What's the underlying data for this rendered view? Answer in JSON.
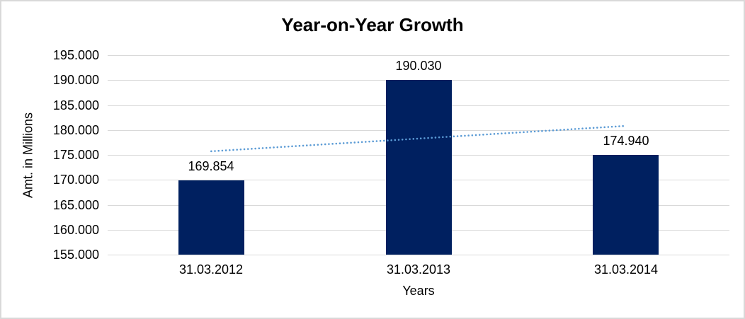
{
  "chart_data": {
    "type": "bar",
    "title": "Year-on-Year Growth",
    "xlabel": "Years",
    "ylabel": "Amt. in Millions",
    "categories": [
      "31.03.2012",
      "31.03.2013",
      "31.03.2014"
    ],
    "values": [
      169.854,
      190.03,
      174.94
    ],
    "data_labels": [
      "169.854",
      "190.030",
      "174.940"
    ],
    "ylim": [
      155,
      195
    ],
    "ytick_step": 5,
    "ytick_labels": [
      "155.000",
      "160.000",
      "165.000",
      "170.000",
      "175.000",
      "180.000",
      "185.000",
      "190.000",
      "195.000"
    ],
    "grid": true,
    "legend": false,
    "trendline": {
      "type": "linear",
      "style": "dotted"
    },
    "colors": {
      "bar": "#002060",
      "trendline": "#5b9bd5",
      "gridline": "#d9d9d9",
      "text": "#000000",
      "background": "#ffffff",
      "frame_border": "#d9d9d9"
    }
  }
}
